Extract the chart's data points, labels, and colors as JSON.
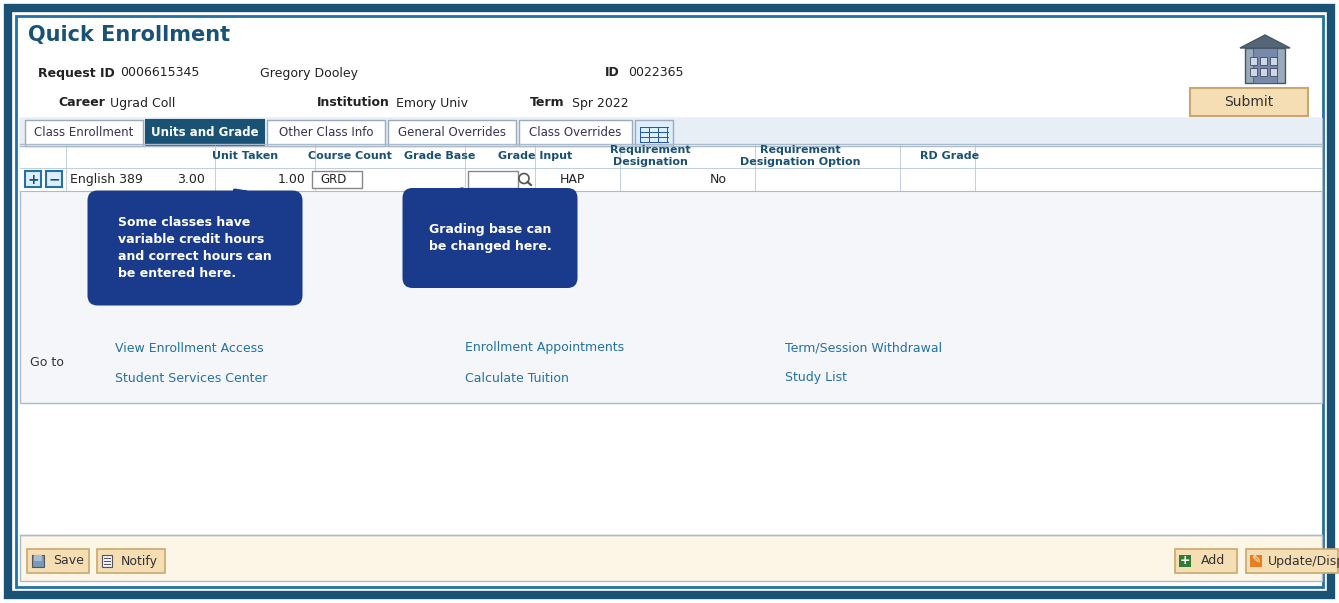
{
  "title": "Quick Enrollment",
  "outer_border_color": "#1a5276",
  "inner_border_color": "#2471a3",
  "bg_color": "#ffffff",
  "tab_bar_bg": "#e8eef5",
  "active_tab": "Units and Grade",
  "tabs": [
    "Class Enrollment",
    "Units and Grade",
    "Other Class Info",
    "General Overrides",
    "Class Overrides"
  ],
  "field_values": {
    "Request ID": "0006615345",
    "name": "Gregory Dooley",
    "Career": "Ugrad Coll",
    "ID": "0022365",
    "Institution": "Emory Univ",
    "Term": "Spr 2022"
  },
  "link_color": "#2471a3",
  "bold_label_color": "#1b2631",
  "links_left": [
    "View Enrollment Access",
    "Student Services Center"
  ],
  "links_center": [
    "Enrollment Appointments",
    "Calculate Tuition"
  ],
  "links_right": [
    "Term/Session Withdrawal",
    "Study List"
  ],
  "callout1_text": "Some classes have\nvariable credit hours\nand correct hours can\nbe entered here.",
  "callout2_text": "Grading base can\nbe changed here.",
  "callout_bg": "#1a3a8c",
  "callout_text_color": "#ffffff",
  "button_bg": "#f5deb3",
  "button_border": "#c8a870",
  "footer_bg": "#fdf5e6",
  "go_to_label": "Go to",
  "submit_label": "Submit",
  "save_label": "Save",
  "notify_label": "Notify",
  "add_label": "Add",
  "update_label": "Update/Display",
  "table_header_color": "#1a5276",
  "table_border_color": "#aabbcc",
  "col_header_labels": [
    "Unit Taken",
    "Course Count",
    "Grade Base",
    "Grade Input",
    "Requirement\nDesignation",
    "Requirement\nDesignation Option",
    "RD Grade"
  ]
}
